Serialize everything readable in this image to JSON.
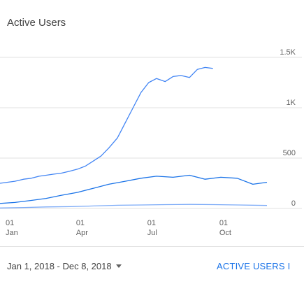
{
  "card": {
    "title": "Active Users"
  },
  "footer": {
    "date_range": "Jan 1, 2018 - Dec 8, 2018",
    "link_label": "ACTIVE USERS I"
  },
  "colors": {
    "series_1": "#4285f4",
    "series_2": "#1a73e8",
    "series_3": "#7baaf7",
    "gridline": "#e0e0e0"
  },
  "chart_data": {
    "type": "line",
    "xlabel": "",
    "ylabel": "",
    "ylim": [
      0,
      1500
    ],
    "xlim": [
      "2018-01-01",
      "2018-12-08"
    ],
    "y_ticks": [
      {
        "value": 0,
        "label": "0"
      },
      {
        "value": 500,
        "label": "500"
      },
      {
        "value": 1000,
        "label": "1K"
      },
      {
        "value": 1500,
        "label": "1.5K"
      }
    ],
    "x_ticks": [
      {
        "date": "2018-01-01",
        "day": "01",
        "month": "Jan"
      },
      {
        "date": "2018-04-01",
        "day": "01",
        "month": "Apr"
      },
      {
        "date": "2018-07-01",
        "day": "01",
        "month": "Jul"
      },
      {
        "date": "2018-10-01",
        "day": "01",
        "month": "Oct"
      }
    ],
    "grid": true,
    "legend": "none",
    "series": [
      {
        "color_key": "series_1",
        "points": [
          {
            "x": "2018-01-01",
            "y": 250
          },
          {
            "x": "2018-01-10",
            "y": 260
          },
          {
            "x": "2018-01-20",
            "y": 270
          },
          {
            "x": "2018-01-31",
            "y": 290
          },
          {
            "x": "2018-02-10",
            "y": 300
          },
          {
            "x": "2018-02-20",
            "y": 320
          },
          {
            "x": "2018-03-01",
            "y": 330
          },
          {
            "x": "2018-03-10",
            "y": 340
          },
          {
            "x": "2018-03-20",
            "y": 350
          },
          {
            "x": "2018-03-31",
            "y": 370
          },
          {
            "x": "2018-04-10",
            "y": 390
          },
          {
            "x": "2018-04-20",
            "y": 420
          },
          {
            "x": "2018-04-30",
            "y": 470
          },
          {
            "x": "2018-05-10",
            "y": 520
          },
          {
            "x": "2018-05-20",
            "y": 600
          },
          {
            "x": "2018-05-31",
            "y": 700
          },
          {
            "x": "2018-06-10",
            "y": 850
          },
          {
            "x": "2018-06-20",
            "y": 1000
          },
          {
            "x": "2018-06-30",
            "y": 1150
          },
          {
            "x": "2018-07-10",
            "y": 1250
          },
          {
            "x": "2018-07-20",
            "y": 1290
          },
          {
            "x": "2018-07-31",
            "y": 1260
          },
          {
            "x": "2018-08-10",
            "y": 1310
          },
          {
            "x": "2018-08-20",
            "y": 1320
          },
          {
            "x": "2018-08-31",
            "y": 1300
          },
          {
            "x": "2018-09-10",
            "y": 1380
          },
          {
            "x": "2018-09-20",
            "y": 1400
          },
          {
            "x": "2018-09-30",
            "y": 1390
          }
        ]
      },
      {
        "color_key": "series_2",
        "points": [
          {
            "x": "2018-01-01",
            "y": 50
          },
          {
            "x": "2018-01-20",
            "y": 60
          },
          {
            "x": "2018-02-10",
            "y": 80
          },
          {
            "x": "2018-03-01",
            "y": 100
          },
          {
            "x": "2018-03-20",
            "y": 130
          },
          {
            "x": "2018-04-10",
            "y": 160
          },
          {
            "x": "2018-04-30",
            "y": 200
          },
          {
            "x": "2018-05-20",
            "y": 240
          },
          {
            "x": "2018-06-10",
            "y": 270
          },
          {
            "x": "2018-06-30",
            "y": 300
          },
          {
            "x": "2018-07-20",
            "y": 320
          },
          {
            "x": "2018-08-10",
            "y": 310
          },
          {
            "x": "2018-08-31",
            "y": 330
          },
          {
            "x": "2018-09-20",
            "y": 290
          },
          {
            "x": "2018-10-10",
            "y": 310
          },
          {
            "x": "2018-10-31",
            "y": 300
          },
          {
            "x": "2018-11-20",
            "y": 240
          },
          {
            "x": "2018-12-08",
            "y": 260
          }
        ]
      },
      {
        "color_key": "series_3",
        "points": [
          {
            "x": "2018-01-01",
            "y": 5
          },
          {
            "x": "2018-02-01",
            "y": 10
          },
          {
            "x": "2018-03-01",
            "y": 15
          },
          {
            "x": "2018-04-01",
            "y": 18
          },
          {
            "x": "2018-05-01",
            "y": 25
          },
          {
            "x": "2018-06-01",
            "y": 32
          },
          {
            "x": "2018-07-01",
            "y": 35
          },
          {
            "x": "2018-08-01",
            "y": 38
          },
          {
            "x": "2018-09-01",
            "y": 40
          },
          {
            "x": "2018-10-01",
            "y": 38
          },
          {
            "x": "2018-11-01",
            "y": 35
          },
          {
            "x": "2018-12-08",
            "y": 30
          }
        ]
      }
    ]
  }
}
